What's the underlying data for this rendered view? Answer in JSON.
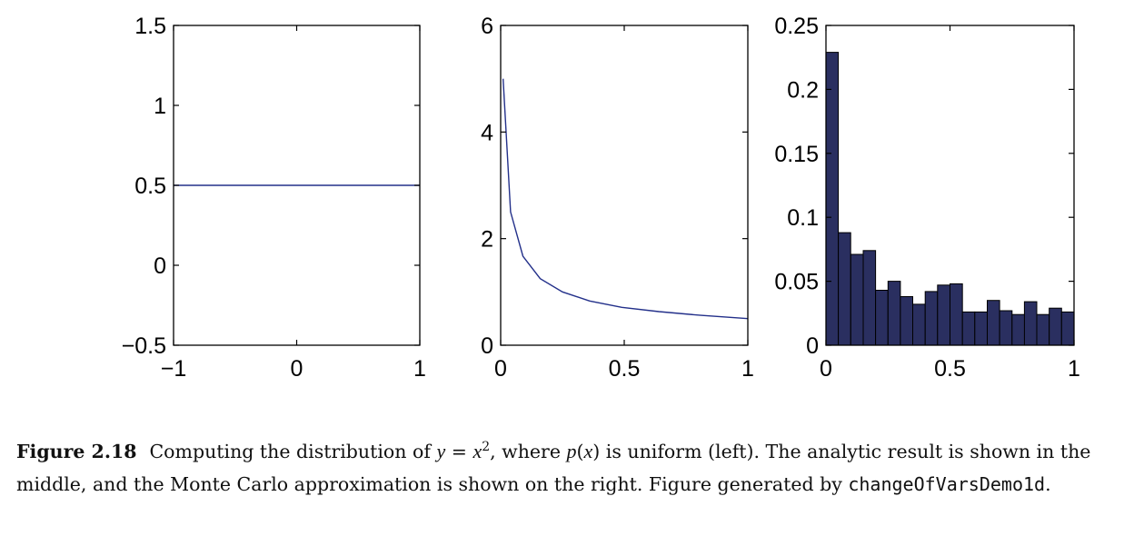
{
  "colors": {
    "line": "#23308a",
    "bar_fill": "#2a2f60",
    "bar_edge": "#000000"
  },
  "chart_data": [
    {
      "type": "line",
      "panel": "left",
      "x": [
        -1,
        1
      ],
      "y": [
        0.5,
        0.5
      ],
      "xlim": [
        -1,
        1
      ],
      "ylim": [
        -0.5,
        1.5
      ],
      "xticks": [
        "−1",
        "0",
        "1"
      ],
      "yticks": [
        "−0.5",
        "0",
        "0.5",
        "1",
        "1.5"
      ],
      "xtick_values": [
        -1,
        0,
        1
      ],
      "ytick_values": [
        -0.5,
        0,
        0.5,
        1,
        1.5
      ]
    },
    {
      "type": "line",
      "panel": "middle",
      "x": [
        0.01,
        0.04,
        0.09,
        0.16,
        0.25,
        0.36,
        0.49,
        0.64,
        0.81,
        1.0
      ],
      "y": [
        5.0,
        2.5,
        1.67,
        1.25,
        1.0,
        0.83,
        0.71,
        0.63,
        0.56,
        0.5
      ],
      "xlim": [
        0,
        1
      ],
      "ylim": [
        0,
        6
      ],
      "xticks": [
        "0",
        "0.5",
        "1"
      ],
      "yticks": [
        "0",
        "2",
        "4",
        "6"
      ],
      "xtick_values": [
        0,
        0.5,
        1
      ],
      "ytick_values": [
        0,
        2,
        4,
        6
      ]
    },
    {
      "type": "bar",
      "panel": "right",
      "bin_start": 0,
      "bin_width": 0.05,
      "values": [
        0.229,
        0.088,
        0.071,
        0.074,
        0.043,
        0.05,
        0.038,
        0.032,
        0.042,
        0.047,
        0.048,
        0.026,
        0.026,
        0.035,
        0.027,
        0.024,
        0.034,
        0.024,
        0.029,
        0.026
      ],
      "xlim": [
        0,
        1
      ],
      "ylim": [
        0,
        0.25
      ],
      "xticks": [
        "0",
        "0.5",
        "1"
      ],
      "yticks": [
        "0",
        "0.05",
        "0.1",
        "0.15",
        "0.2",
        "0.25"
      ],
      "xtick_values": [
        0,
        0.5,
        1
      ],
      "ytick_values": [
        0,
        0.05,
        0.1,
        0.15,
        0.2,
        0.25
      ]
    }
  ],
  "caption": {
    "label": "Figure 2.18",
    "t1": "Computing the distribution of ",
    "m1": "y",
    "t2": " = ",
    "m2": "x",
    "sup": "2",
    "t3": ", where ",
    "m3": "p",
    "t4": "(",
    "m4": "x",
    "t5": ") is uniform (left). The analytic result is shown in the middle, and the Monte Carlo approximation is shown on the right. Figure generated by ",
    "code": "changeOfVarsDemo1d",
    "t6": "."
  }
}
